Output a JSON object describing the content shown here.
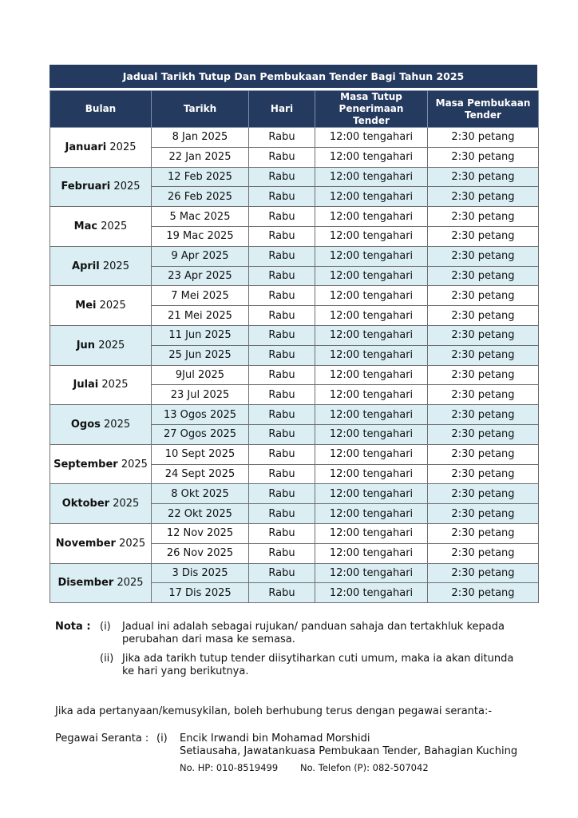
{
  "title": "Jadual Tarikh Tutup Dan Pembukaan Tender Bagi Tahun 2025",
  "headers": [
    "Bulan",
    "Tarikh",
    "Hari",
    "Masa Tutup Penerimaan Tender",
    "Masa Pembukaan Tender"
  ],
  "colors": {
    "header_bg": "#243a5e",
    "alt_row_bg": "#daeef3"
  },
  "months": [
    {
      "name": "Januari",
      "year": "2025",
      "rows": [
        [
          "8 Jan 2025",
          "Rabu",
          "12:00 tengahari",
          "2:30 petang"
        ],
        [
          "22 Jan 2025",
          "Rabu",
          "12:00 tengahari",
          "2:30 petang"
        ]
      ]
    },
    {
      "name": "Februari",
      "year": "2025",
      "rows": [
        [
          "12 Feb 2025",
          "Rabu",
          "12:00 tengahari",
          "2:30 petang"
        ],
        [
          "26 Feb 2025",
          "Rabu",
          "12:00 tengahari",
          "2:30 petang"
        ]
      ]
    },
    {
      "name": "Mac",
      "year": "2025",
      "rows": [
        [
          "5 Mac 2025",
          "Rabu",
          "12:00 tengahari",
          "2:30 petang"
        ],
        [
          "19 Mac 2025",
          "Rabu",
          "12:00 tengahari",
          "2:30 petang"
        ]
      ]
    },
    {
      "name": "April",
      "year": "2025",
      "rows": [
        [
          "9 Apr 2025",
          "Rabu",
          "12:00 tengahari",
          "2:30 petang"
        ],
        [
          "23 Apr 2025",
          "Rabu",
          "12:00 tengahari",
          "2:30 petang"
        ]
      ]
    },
    {
      "name": "Mei",
      "year": "2025",
      "rows": [
        [
          "7 Mei 2025",
          "Rabu",
          "12:00 tengahari",
          "2:30 petang"
        ],
        [
          "21 Mei 2025",
          "Rabu",
          "12:00 tengahari",
          "2:30 petang"
        ]
      ]
    },
    {
      "name": "Jun",
      "year": "2025",
      "rows": [
        [
          "11 Jun 2025",
          "Rabu",
          "12:00 tengahari",
          "2:30 petang"
        ],
        [
          "25 Jun 2025",
          "Rabu",
          "12:00 tengahari",
          "2:30 petang"
        ]
      ]
    },
    {
      "name": "Julai",
      "year": "2025",
      "rows": [
        [
          "9Jul 2025",
          "Rabu",
          "12:00 tengahari",
          "2:30 petang"
        ],
        [
          "23 Jul 2025",
          "Rabu",
          "12:00 tengahari",
          "2:30 petang"
        ]
      ]
    },
    {
      "name": "Ogos",
      "year": "2025",
      "rows": [
        [
          "13 Ogos 2025",
          "Rabu",
          "12:00 tengahari",
          "2:30 petang"
        ],
        [
          "27 Ogos 2025",
          "Rabu",
          "12:00 tengahari",
          "2:30 petang"
        ]
      ]
    },
    {
      "name": "September",
      "year": "2025",
      "rows": [
        [
          "10 Sept 2025",
          "Rabu",
          "12:00 tengahari",
          "2:30 petang"
        ],
        [
          "24 Sept 2025",
          "Rabu",
          "12:00 tengahari",
          "2:30 petang"
        ]
      ]
    },
    {
      "name": "Oktober",
      "year": "2025",
      "rows": [
        [
          "8 Okt 2025",
          "Rabu",
          "12:00 tengahari",
          "2:30 petang"
        ],
        [
          "22 Okt 2025",
          "Rabu",
          "12:00 tengahari",
          "2:30 petang"
        ]
      ]
    },
    {
      "name": "November",
      "year": "2025",
      "rows": [
        [
          "12 Nov 2025",
          "Rabu",
          "12:00 tengahari",
          "2:30 petang"
        ],
        [
          "26 Nov 2025",
          "Rabu",
          "12:00 tengahari",
          "2:30 petang"
        ]
      ]
    },
    {
      "name": "Disember",
      "year": "2025",
      "rows": [
        [
          "3 Dis 2025",
          "Rabu",
          "12:00 tengahari",
          "2:30 petang"
        ],
        [
          "17 Dis 2025",
          "Rabu",
          "12:00 tengahari",
          "2:30 petang"
        ]
      ]
    }
  ],
  "nota": {
    "label": "Nota :",
    "items": [
      {
        "num": "(i)",
        "text": "Jadual ini adalah sebagai rujukan/ panduan sahaja dan tertakhluk kepada perubahan dari masa ke semasa."
      },
      {
        "num": "(ii)",
        "text": "Jika ada tarikh tutup tender diisytiharkan cuti umum, maka ia akan ditunda ke hari yang berikutnya."
      }
    ]
  },
  "contact": {
    "intro": "Jika ada pertanyaan/kemusykilan, boleh berhubung terus dengan pegawai seranta:-",
    "label": "Pegawai Seranta :",
    "num": "(i)",
    "name": "Encik Irwandi bin Mohamad Morshidi",
    "position": "Setiausaha, Jawatankuasa Pembukaan Tender, Bahagian Kuching",
    "hp": "No. HP: 010-8519499",
    "tel": "No. Telefon (P): 082-507042"
  }
}
